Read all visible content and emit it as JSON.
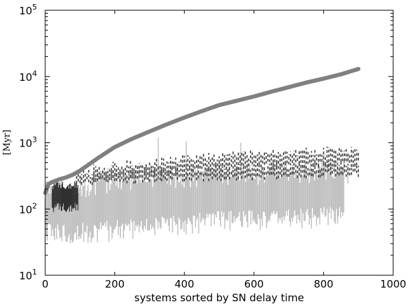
{
  "chart_data": {
    "type": "scatter",
    "title": "",
    "xlabel": "systems sorted by SN delay time",
    "ylabel": "[Myr]",
    "xlim": [
      0,
      1000
    ],
    "ylim": [
      10,
      100000
    ],
    "yscale": "log",
    "x_ticks": [
      0,
      200,
      400,
      600,
      800,
      1000
    ],
    "x_tick_labels": [
      "0",
      "200",
      "400",
      "600",
      "800",
      "1000"
    ],
    "y_ticks": [
      10,
      100,
      1000,
      10000,
      100000
    ],
    "y_tick_labels": [
      {
        "base": "10",
        "exp": "1"
      },
      {
        "base": "10",
        "exp": "2"
      },
      {
        "base": "10",
        "exp": "3"
      },
      {
        "base": "10",
        "exp": "4"
      },
      {
        "base": "10",
        "exp": "5"
      }
    ],
    "grid": false,
    "legend": "none",
    "colors": {
      "sn_delay_curve": "#808080",
      "dashed_upper_band": "#3a3a3a",
      "dashed_lower_band": "#3a3a3a",
      "early_dark_segments": "#303030",
      "light_grey_segments": "#bdbdbd"
    },
    "series": [
      {
        "style": "thick-solid-curve",
        "x": [
          0,
          10,
          20,
          40,
          60,
          80,
          100,
          150,
          200,
          250,
          300,
          350,
          400,
          450,
          500,
          550,
          600,
          650,
          700,
          750,
          800,
          850,
          900
        ],
        "y": [
          175,
          240,
          255,
          280,
          300,
          330,
          380,
          580,
          860,
          1150,
          1480,
          1900,
          2400,
          3000,
          3700,
          4300,
          5000,
          5900,
          6900,
          8100,
          9300,
          10800,
          13000
        ]
      },
      {
        "style": "dashed-vertical-segments-upper",
        "x_range": [
          140,
          900
        ],
        "y_low_at": [
          [
            140,
            280
          ],
          [
            400,
            380
          ],
          [
            600,
            450
          ],
          [
            900,
            480
          ]
        ],
        "y_high_at": [
          [
            140,
            420
          ],
          [
            400,
            580
          ],
          [
            600,
            700
          ],
          [
            900,
            800
          ]
        ]
      },
      {
        "style": "dashed-vertical-segments-lower",
        "x_range": [
          90,
          900
        ],
        "y_low_at": [
          [
            90,
            250
          ],
          [
            400,
            280
          ],
          [
            600,
            300
          ],
          [
            900,
            330
          ]
        ],
        "y_high_at": [
          [
            90,
            340
          ],
          [
            400,
            420
          ],
          [
            600,
            450
          ],
          [
            900,
            480
          ]
        ]
      },
      {
        "style": "dark-vertical-segments",
        "x_range": [
          20,
          95
        ],
        "y_low": 90,
        "y_high": 250
      },
      {
        "style": "light-vertical-segments",
        "x_range": [
          0,
          860
        ],
        "y_low_at": [
          [
            0,
            35
          ],
          [
            200,
            40
          ],
          [
            500,
            55
          ],
          [
            860,
            65
          ]
        ],
        "y_high_at": [
          [
            0,
            200
          ],
          [
            200,
            300
          ],
          [
            500,
            360
          ],
          [
            860,
            420
          ]
        ]
      }
    ]
  }
}
